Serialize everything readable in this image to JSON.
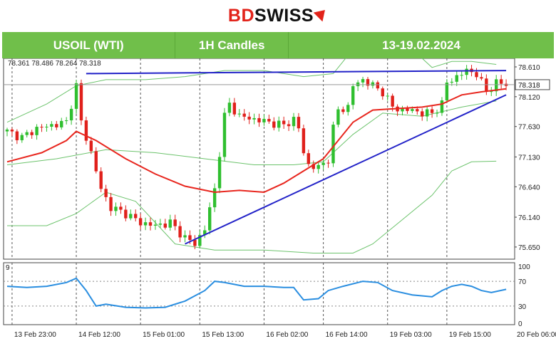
{
  "brand": {
    "bd": "BD",
    "swiss": "SWISS"
  },
  "header": {
    "instrument": "USOIL (WTI)",
    "timeframe": "1H Candles",
    "period": "13-19.02.2024"
  },
  "colors": {
    "header_bg": "#70bf4a",
    "bull": "#2fbf2f",
    "bear": "#e0201b",
    "ma": "#e8261e",
    "bands": "#6cc36c",
    "trend": "#2222c8",
    "osc": "#2a8ee0"
  },
  "chart_data": [
    {
      "type": "candlestick",
      "title": "",
      "ohlc_label": "78.361 78.486 78.264 78.318",
      "last_price": "78.318",
      "y_ticks": [
        "78.610",
        "78.120",
        "77.630",
        "77.130",
        "76.640",
        "76.140",
        "75.650"
      ],
      "ylim": [
        75.45,
        78.75
      ],
      "x_ticks": [
        "13 Feb 23:00",
        "14 Feb 12:00",
        "15 Feb 01:00",
        "15 Feb 13:00",
        "16 Feb 02:00",
        "16 Feb 14:00",
        "19 Feb 03:00",
        "19 Feb 15:00",
        "20 Feb 06:00"
      ],
      "x_tick_index": [
        1,
        14,
        27,
        39,
        52,
        64,
        77,
        89,
        102
      ],
      "bars": 102,
      "close_path": [
        [
          0,
          77.55
        ],
        [
          3,
          77.45
        ],
        [
          6,
          77.6
        ],
        [
          9,
          77.65
        ],
        [
          12,
          77.7
        ],
        [
          14,
          78.3
        ],
        [
          15,
          77.7
        ],
        [
          17,
          77.2
        ],
        [
          19,
          76.6
        ],
        [
          21,
          76.3
        ],
        [
          24,
          76.2
        ],
        [
          27,
          76.05
        ],
        [
          30,
          76.0
        ],
        [
          33,
          76.05
        ],
        [
          36,
          75.8
        ],
        [
          38,
          75.7
        ],
        [
          40,
          75.95
        ],
        [
          42,
          76.6
        ],
        [
          43,
          77.2
        ],
        [
          44,
          77.8
        ],
        [
          45,
          78.0
        ],
        [
          47,
          77.8
        ],
        [
          50,
          77.75
        ],
        [
          53,
          77.7
        ],
        [
          56,
          77.65
        ],
        [
          58,
          77.75
        ],
        [
          59,
          77.6
        ],
        [
          60,
          77.2
        ],
        [
          61,
          77.0
        ],
        [
          63,
          76.95
        ],
        [
          65,
          77.1
        ],
        [
          66,
          77.6
        ],
        [
          67,
          77.9
        ],
        [
          69,
          77.95
        ],
        [
          70,
          78.3
        ],
        [
          72,
          78.4
        ],
        [
          74,
          78.3
        ],
        [
          76,
          78.2
        ],
        [
          78,
          77.95
        ],
        [
          80,
          77.9
        ],
        [
          82,
          77.9
        ],
        [
          84,
          77.85
        ],
        [
          86,
          77.85
        ],
        [
          88,
          78.0
        ],
        [
          89,
          78.35
        ],
        [
          91,
          78.45
        ],
        [
          93,
          78.55
        ],
        [
          95,
          78.5
        ],
        [
          97,
          78.2
        ],
        [
          99,
          78.35
        ],
        [
          101,
          78.32
        ]
      ],
      "ma_path": [
        [
          0,
          77.05
        ],
        [
          7,
          77.2
        ],
        [
          12,
          77.4
        ],
        [
          14,
          77.55
        ],
        [
          18,
          77.4
        ],
        [
          24,
          77.1
        ],
        [
          30,
          76.85
        ],
        [
          36,
          76.65
        ],
        [
          42,
          76.55
        ],
        [
          47,
          76.58
        ],
        [
          52,
          76.55
        ],
        [
          56,
          76.7
        ],
        [
          60,
          76.9
        ],
        [
          64,
          77.1
        ],
        [
          67,
          77.4
        ],
        [
          70,
          77.7
        ],
        [
          74,
          77.9
        ],
        [
          78,
          77.92
        ],
        [
          84,
          77.95
        ],
        [
          88,
          78.0
        ],
        [
          92,
          78.15
        ],
        [
          96,
          78.2
        ],
        [
          101,
          78.25
        ]
      ],
      "band_upper": [
        [
          0,
          77.7
        ],
        [
          8,
          78.0
        ],
        [
          14,
          78.3
        ],
        [
          20,
          78.4
        ],
        [
          28,
          78.4
        ],
        [
          36,
          78.45
        ],
        [
          44,
          78.55
        ],
        [
          52,
          78.55
        ],
        [
          60,
          78.45
        ],
        [
          66,
          78.5
        ],
        [
          70,
          78.9
        ],
        [
          72,
          79.4
        ],
        [
          78,
          79.2
        ],
        [
          86,
          78.6
        ],
        [
          90,
          78.7
        ],
        [
          94,
          78.7
        ],
        [
          99,
          78.65
        ]
      ],
      "band_middle": [
        [
          0,
          77.0
        ],
        [
          10,
          77.1
        ],
        [
          20,
          77.25
        ],
        [
          30,
          77.2
        ],
        [
          40,
          77.1
        ],
        [
          50,
          77.0
        ],
        [
          58,
          77.0
        ],
        [
          64,
          77.05
        ],
        [
          70,
          77.5
        ],
        [
          76,
          77.85
        ],
        [
          84,
          77.8
        ],
        [
          92,
          77.95
        ],
        [
          99,
          78.05
        ]
      ],
      "band_lower": [
        [
          0,
          76.0
        ],
        [
          8,
          76.0
        ],
        [
          14,
          76.2
        ],
        [
          20,
          76.55
        ],
        [
          26,
          76.4
        ],
        [
          34,
          75.7
        ],
        [
          42,
          75.6
        ],
        [
          52,
          75.6
        ],
        [
          62,
          75.55
        ],
        [
          70,
          75.55
        ],
        [
          74,
          75.7
        ],
        [
          80,
          76.1
        ],
        [
          86,
          76.5
        ],
        [
          90,
          76.9
        ],
        [
          94,
          77.05
        ],
        [
          99,
          77.06
        ]
      ],
      "trendlines": [
        [
          [
            16,
            78.5
          ],
          [
            101,
            78.55
          ]
        ],
        [
          [
            36,
            75.7
          ],
          [
            101,
            78.15
          ]
        ]
      ]
    },
    {
      "type": "line",
      "title": "",
      "label": "9",
      "y_ticks": [
        "100",
        "70",
        "30",
        "0"
      ],
      "ylim": [
        0,
        100
      ],
      "series": [
        {
          "values_path": [
            [
              0,
              62
            ],
            [
              4,
              60
            ],
            [
              8,
              62
            ],
            [
              12,
              68
            ],
            [
              14,
              75
            ],
            [
              16,
              55
            ],
            [
              18,
              30
            ],
            [
              20,
              33
            ],
            [
              24,
              28
            ],
            [
              28,
              27
            ],
            [
              32,
              28
            ],
            [
              36,
              38
            ],
            [
              40,
              55
            ],
            [
              42,
              70
            ],
            [
              44,
              68
            ],
            [
              48,
              62
            ],
            [
              52,
              62
            ],
            [
              56,
              60
            ],
            [
              58,
              60
            ],
            [
              60,
              40
            ],
            [
              63,
              42
            ],
            [
              65,
              55
            ],
            [
              68,
              62
            ],
            [
              72,
              70
            ],
            [
              75,
              68
            ],
            [
              78,
              55
            ],
            [
              82,
              48
            ],
            [
              86,
              45
            ],
            [
              88,
              55
            ],
            [
              90,
              62
            ],
            [
              92,
              65
            ],
            [
              94,
              62
            ],
            [
              96,
              55
            ],
            [
              98,
              52
            ],
            [
              101,
              57
            ]
          ]
        }
      ]
    }
  ]
}
